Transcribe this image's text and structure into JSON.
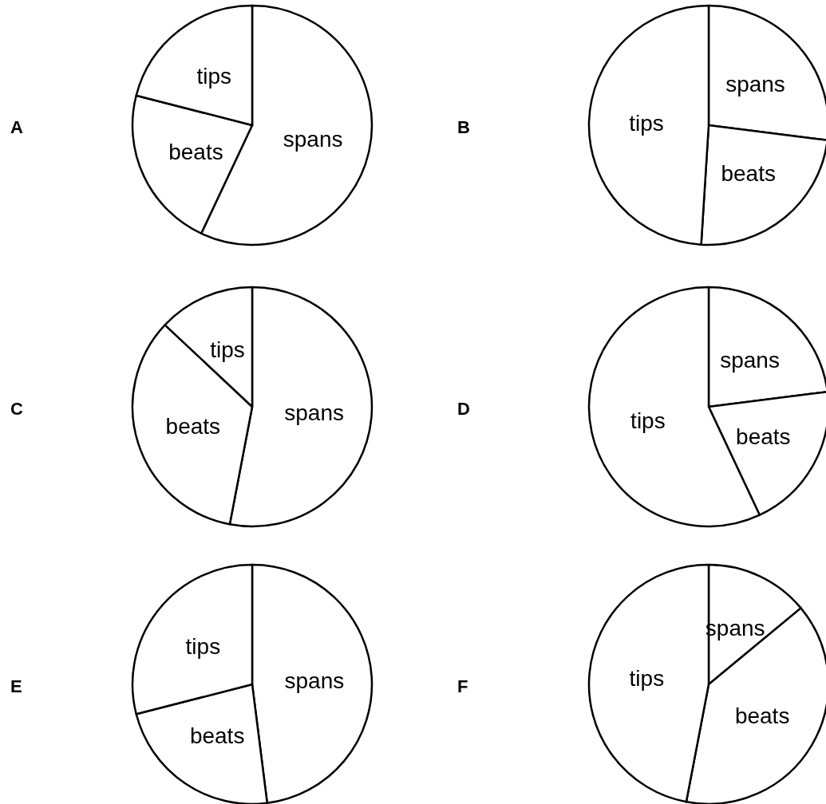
{
  "chart_data": [
    {
      "type": "pie",
      "title": "A",
      "categories": [
        "spans",
        "beats",
        "tips"
      ],
      "values": [
        57,
        22,
        21
      ],
      "colors": [
        "#ffffff",
        "#ffffff",
        "#ffffff"
      ]
    },
    {
      "type": "pie",
      "title": "B",
      "categories": [
        "spans",
        "beats",
        "tips"
      ],
      "values": [
        27,
        24,
        49
      ],
      "colors": [
        "#ffffff",
        "#ffffff",
        "#ffffff"
      ]
    },
    {
      "type": "pie",
      "title": "C",
      "categories": [
        "spans",
        "beats",
        "tips"
      ],
      "values": [
        53,
        34,
        13
      ],
      "colors": [
        "#ffffff",
        "#ffffff",
        "#ffffff"
      ]
    },
    {
      "type": "pie",
      "title": "D",
      "categories": [
        "spans",
        "beats",
        "tips"
      ],
      "values": [
        23,
        20,
        57
      ],
      "colors": [
        "#ffffff",
        "#ffffff",
        "#ffffff"
      ]
    },
    {
      "type": "pie",
      "title": "E",
      "categories": [
        "spans",
        "beats",
        "tips"
      ],
      "values": [
        48,
        23,
        29
      ],
      "colors": [
        "#ffffff",
        "#ffffff",
        "#ffffff"
      ]
    },
    {
      "type": "pie",
      "title": "F",
      "categories": [
        "spans",
        "beats",
        "tips"
      ],
      "values": [
        14,
        39,
        47
      ],
      "colors": [
        "#ffffff",
        "#ffffff",
        "#ffffff"
      ]
    }
  ]
}
